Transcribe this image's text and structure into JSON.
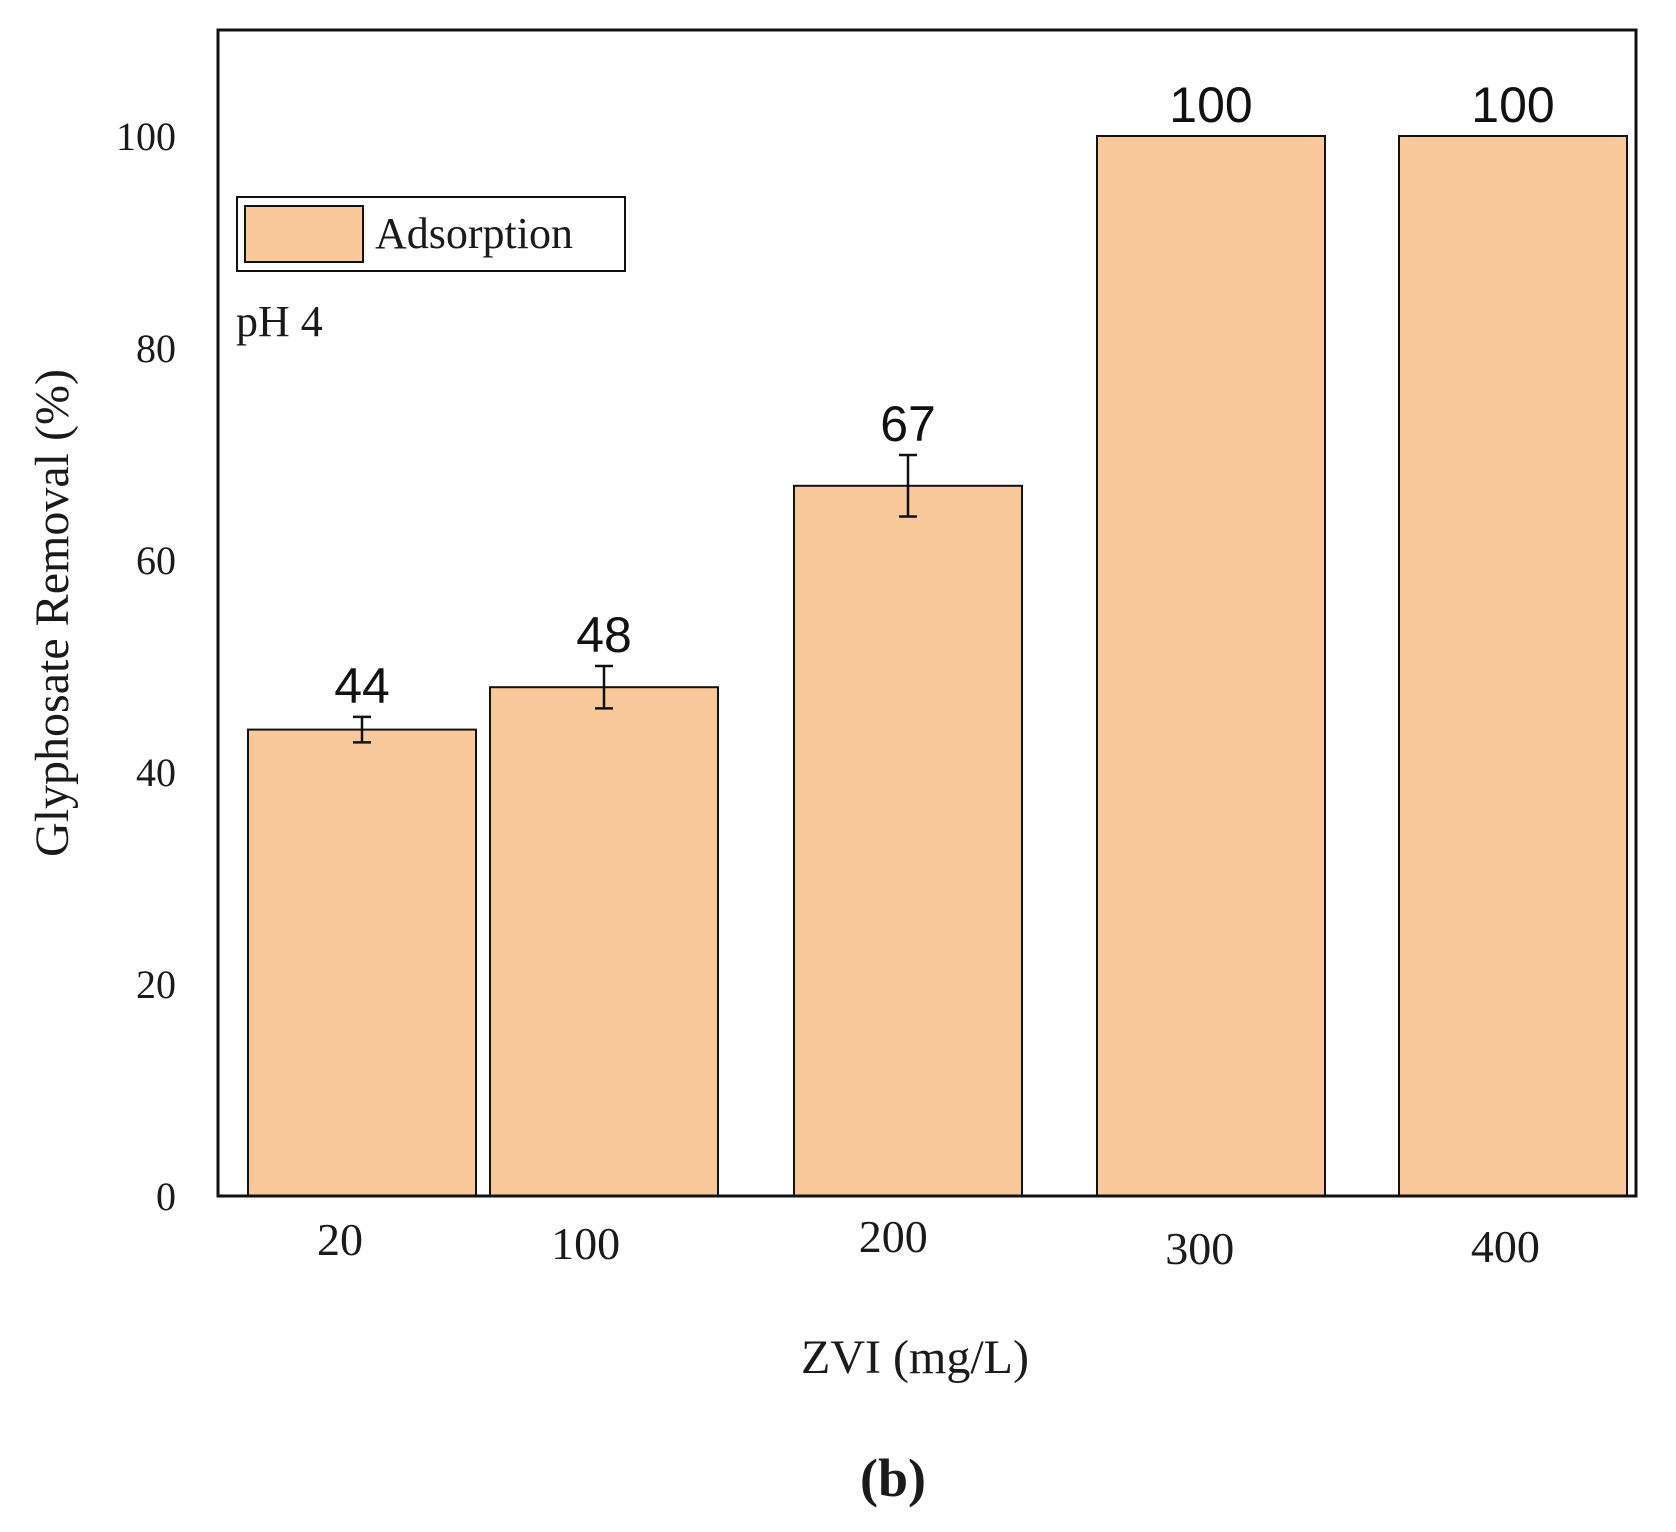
{
  "chart_data": {
    "type": "bar",
    "categories": [
      "20",
      "100",
      "200",
      "300",
      "400"
    ],
    "series": [
      {
        "name": "Adsorption",
        "values": [
          44,
          48,
          67,
          100,
          100
        ],
        "errors": [
          1.2,
          2.0,
          2.9,
          0,
          0
        ],
        "color": "#f9c99c"
      }
    ],
    "data_labels": [
      "44",
      "48",
      "67",
      "100",
      "100"
    ],
    "xlabel": "ZVI (mg/L)",
    "ylabel": "Glyphosate Removal (%)",
    "ylim": [
      0,
      110
    ],
    "yticks": [
      0,
      20,
      40,
      60,
      80,
      100
    ],
    "ytick_labels": [
      "0",
      "20",
      "40",
      "60",
      "80",
      "100"
    ],
    "annotation": "pH 4",
    "legend": {
      "position": "top-left",
      "label": "Adsorption"
    },
    "grid": false,
    "caption": "(b)"
  }
}
